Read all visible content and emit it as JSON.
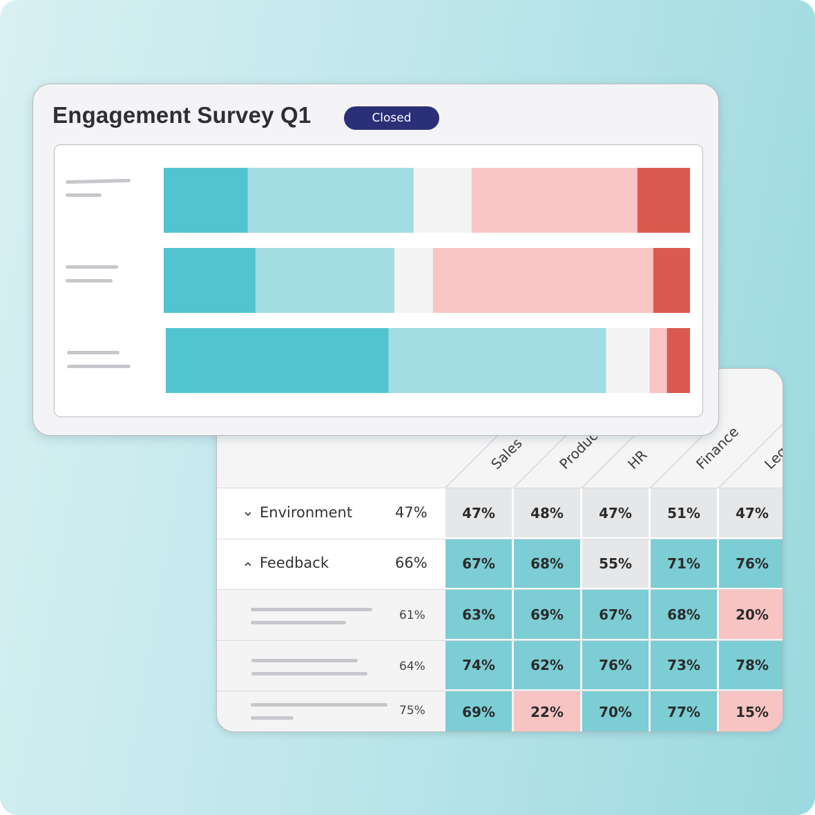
{
  "survey": {
    "title": "Engagement Survey Q1",
    "status": "Closed"
  },
  "chart_data": {
    "type": "bar",
    "stacked": true,
    "orientation": "horizontal",
    "categories": [
      "",
      "",
      ""
    ],
    "series": [
      {
        "color": "#52c4cf",
        "values": [
          16,
          17.5,
          42.5
        ]
      },
      {
        "color": "#a3dce3",
        "values": [
          31.5,
          26.5,
          41.5
        ]
      },
      {
        "color": "#f4f4f5",
        "values": [
          11,
          7.3,
          8.3
        ]
      },
      {
        "color": "#f8c5c4",
        "values": [
          31.5,
          42,
          3.3
        ]
      },
      {
        "color": "#db5a50",
        "values": [
          10,
          7,
          4.4
        ]
      }
    ]
  },
  "heatmap": {
    "columns": [
      "Sales",
      "Product",
      "HR",
      "Finance",
      "Legal"
    ],
    "rows": [
      {
        "type": "group",
        "label": "Environment",
        "expanded": false,
        "overall": "47%",
        "cells": [
          {
            "text": "47%",
            "tone": "neutral"
          },
          {
            "text": "48%",
            "tone": "neutral"
          },
          {
            "text": "47%",
            "tone": "neutral"
          },
          {
            "text": "51%",
            "tone": "neutral"
          },
          {
            "text": "47%",
            "tone": "neutral"
          }
        ]
      },
      {
        "type": "group",
        "label": "Feedback",
        "expanded": true,
        "overall": "66%",
        "cells": [
          {
            "text": "67%",
            "tone": "positive"
          },
          {
            "text": "68%",
            "tone": "positive"
          },
          {
            "text": "55%",
            "tone": "neutral"
          },
          {
            "text": "71%",
            "tone": "positive"
          },
          {
            "text": "76%",
            "tone": "positive"
          }
        ]
      },
      {
        "type": "item",
        "label": "",
        "overall": "61%",
        "cells": [
          {
            "text": "63%",
            "tone": "positive"
          },
          {
            "text": "69%",
            "tone": "positive"
          },
          {
            "text": "67%",
            "tone": "positive"
          },
          {
            "text": "68%",
            "tone": "positive"
          },
          {
            "text": "20%",
            "tone": "negative"
          }
        ]
      },
      {
        "type": "item",
        "label": "",
        "overall": "64%",
        "cells": [
          {
            "text": "74%",
            "tone": "positive"
          },
          {
            "text": "62%",
            "tone": "positive"
          },
          {
            "text": "76%",
            "tone": "positive"
          },
          {
            "text": "73%",
            "tone": "positive"
          },
          {
            "text": "78%",
            "tone": "positive"
          }
        ]
      },
      {
        "type": "item",
        "label": "",
        "overall": "75%",
        "cells": [
          {
            "text": "69%",
            "tone": "positive"
          },
          {
            "text": "22%",
            "tone": "negative"
          },
          {
            "text": "70%",
            "tone": "positive"
          },
          {
            "text": "77%",
            "tone": "positive"
          },
          {
            "text": "15%",
            "tone": "negative"
          }
        ]
      }
    ]
  },
  "icons": {
    "collapsed": "chevron-down-icon",
    "expanded": "chevron-up-icon"
  },
  "colors": {
    "positive": "#7ccdd4",
    "negative": "#f7c4c3",
    "neutral": "#e6e7e9",
    "badge": "#2b2f77"
  }
}
